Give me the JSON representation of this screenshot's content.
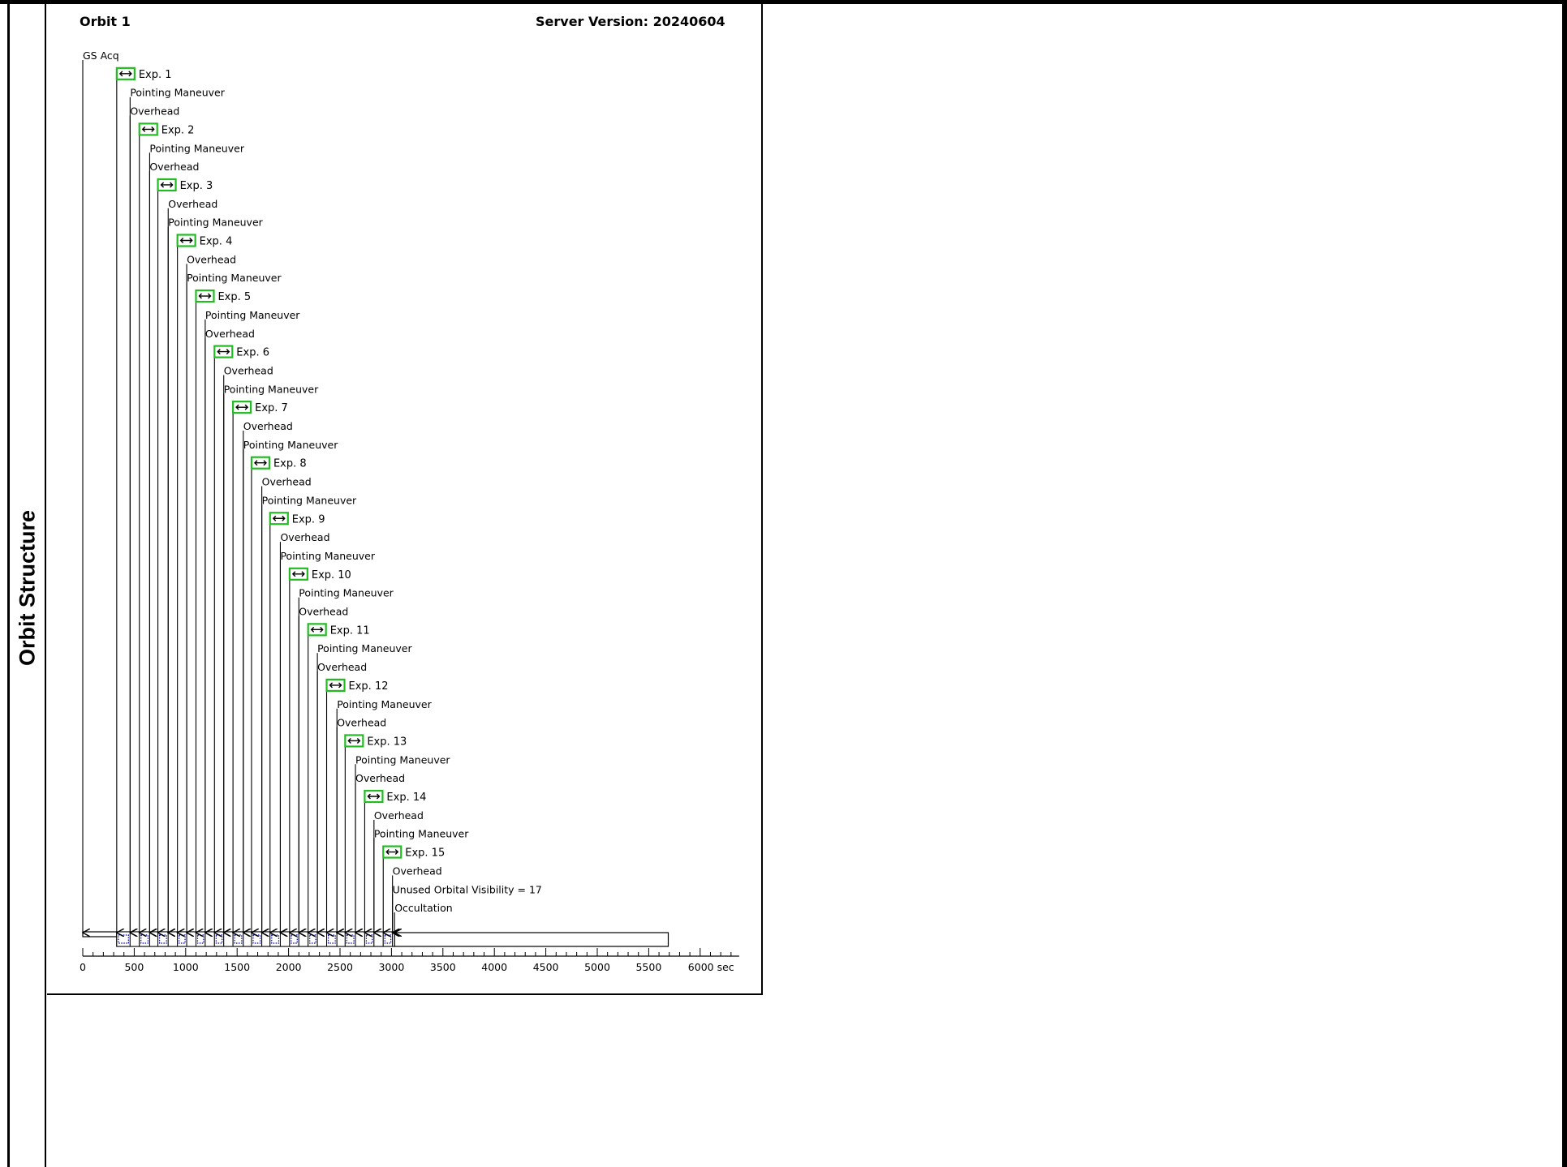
{
  "page": {
    "side_title": "Orbit Structure",
    "orbit_title": "Orbit 1",
    "server_version": "Server Version: 20240604"
  },
  "colors": {
    "exposure_box": "#22bb22",
    "exposure_cell": "#0000aa",
    "line": "#000000",
    "background": "#ffffff"
  },
  "icons": {
    "exposure_marker": "double-arrow-icon"
  },
  "chart_data": {
    "type": "timeline",
    "x_unit": "sec",
    "x_range": [
      0,
      6300
    ],
    "x_ticks_major": [
      0,
      500,
      1000,
      1500,
      2000,
      2500,
      3000,
      3500,
      4000,
      4500,
      5000,
      5500,
      6000
    ],
    "x_tick_labels": [
      "0",
      "500",
      "1000",
      "1500",
      "2000",
      "2500",
      "3000",
      "3500",
      "4000",
      "4500",
      "5000",
      "5500",
      "6000 sec"
    ],
    "events": [
      {
        "label": "GS Acq",
        "t": 0,
        "kind": "text"
      },
      {
        "label": "Exp. 1",
        "t": 330,
        "kind": "exposure"
      },
      {
        "label": "Pointing Maneuver",
        "t": 460,
        "kind": "text"
      },
      {
        "label": "Overhead",
        "t": 460,
        "kind": "text"
      },
      {
        "label": "Exp. 2",
        "t": 550,
        "kind": "exposure"
      },
      {
        "label": "Pointing Maneuver",
        "t": 650,
        "kind": "text"
      },
      {
        "label": "Overhead",
        "t": 650,
        "kind": "text"
      },
      {
        "label": "Exp. 3",
        "t": 730,
        "kind": "exposure"
      },
      {
        "label": "Overhead",
        "t": 830,
        "kind": "text"
      },
      {
        "label": "Pointing Maneuver",
        "t": 830,
        "kind": "text"
      },
      {
        "label": "Exp. 4",
        "t": 920,
        "kind": "exposure"
      },
      {
        "label": "Overhead",
        "t": 1010,
        "kind": "text"
      },
      {
        "label": "Pointing Maneuver",
        "t": 1010,
        "kind": "text"
      },
      {
        "label": "Exp. 5",
        "t": 1100,
        "kind": "exposure"
      },
      {
        "label": "Pointing Maneuver",
        "t": 1190,
        "kind": "text"
      },
      {
        "label": "Overhead",
        "t": 1190,
        "kind": "text"
      },
      {
        "label": "Exp. 6",
        "t": 1280,
        "kind": "exposure"
      },
      {
        "label": "Overhead",
        "t": 1370,
        "kind": "text"
      },
      {
        "label": "Pointing Maneuver",
        "t": 1370,
        "kind": "text"
      },
      {
        "label": "Exp. 7",
        "t": 1460,
        "kind": "exposure"
      },
      {
        "label": "Overhead",
        "t": 1560,
        "kind": "text"
      },
      {
        "label": "Pointing Maneuver",
        "t": 1560,
        "kind": "text"
      },
      {
        "label": "Exp. 8",
        "t": 1640,
        "kind": "exposure"
      },
      {
        "label": "Overhead",
        "t": 1740,
        "kind": "text"
      },
      {
        "label": "Pointing Maneuver",
        "t": 1740,
        "kind": "text"
      },
      {
        "label": "Exp. 9",
        "t": 1820,
        "kind": "exposure"
      },
      {
        "label": "Overhead",
        "t": 1920,
        "kind": "text"
      },
      {
        "label": "Pointing Maneuver",
        "t": 1920,
        "kind": "text"
      },
      {
        "label": "Exp. 10",
        "t": 2010,
        "kind": "exposure"
      },
      {
        "label": "Pointing Maneuver",
        "t": 2100,
        "kind": "text"
      },
      {
        "label": "Overhead",
        "t": 2100,
        "kind": "text"
      },
      {
        "label": "Exp. 11",
        "t": 2190,
        "kind": "exposure"
      },
      {
        "label": "Pointing Maneuver",
        "t": 2280,
        "kind": "text"
      },
      {
        "label": "Overhead",
        "t": 2280,
        "kind": "text"
      },
      {
        "label": "Exp. 12",
        "t": 2370,
        "kind": "exposure"
      },
      {
        "label": "Pointing Maneuver",
        "t": 2470,
        "kind": "text"
      },
      {
        "label": "Overhead",
        "t": 2470,
        "kind": "text"
      },
      {
        "label": "Exp. 13",
        "t": 2550,
        "kind": "exposure"
      },
      {
        "label": "Pointing Maneuver",
        "t": 2650,
        "kind": "text"
      },
      {
        "label": "Overhead",
        "t": 2650,
        "kind": "text"
      },
      {
        "label": "Exp. 14",
        "t": 2740,
        "kind": "exposure"
      },
      {
        "label": "Overhead",
        "t": 2830,
        "kind": "text"
      },
      {
        "label": "Pointing Maneuver",
        "t": 2830,
        "kind": "text"
      },
      {
        "label": "Exp. 15",
        "t": 2920,
        "kind": "exposure"
      },
      {
        "label": "Overhead",
        "t": 3010,
        "kind": "text"
      },
      {
        "label": "Unused Orbital Visibility = 17",
        "t": 3010,
        "kind": "text"
      },
      {
        "label": "Occultation",
        "t": 3030,
        "kind": "text"
      }
    ],
    "bars": [
      {
        "name": "gs-acq-bar",
        "start": 0,
        "end": 330
      },
      {
        "name": "visibility-bar",
        "start": 330,
        "end": 3030
      },
      {
        "name": "occultation-bar",
        "start": 3030,
        "end": 5690
      }
    ]
  }
}
